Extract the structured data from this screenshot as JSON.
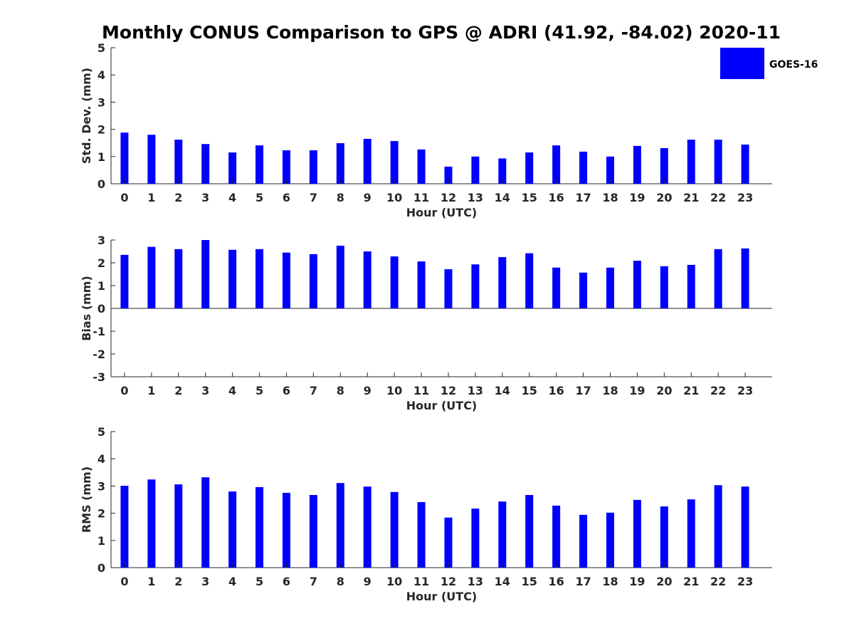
{
  "figure": {
    "title": "Monthly CONUS Comparison to GPS @ ADRI (41.92, -84.02) 2020-11",
    "bar_color": "#0000ff",
    "legend": {
      "label": "GOES-16",
      "placement": "top-right"
    }
  },
  "chart_data": [
    {
      "type": "bar",
      "id": "stddev",
      "series_name": "GOES-16",
      "xlabel": "Hour (UTC)",
      "ylabel": "Std. Dev. (mm)",
      "ylim": [
        0,
        5
      ],
      "yticks": [
        0,
        1,
        2,
        3,
        4,
        5
      ],
      "categories": [
        0,
        1,
        2,
        3,
        4,
        5,
        6,
        7,
        8,
        9,
        10,
        11,
        12,
        13,
        14,
        15,
        16,
        17,
        18,
        19,
        20,
        21,
        22,
        23
      ],
      "values": [
        1.88,
        1.8,
        1.62,
        1.46,
        1.15,
        1.41,
        1.23,
        1.23,
        1.49,
        1.65,
        1.57,
        1.26,
        0.63,
        1.0,
        0.93,
        1.15,
        1.41,
        1.18,
        1.0,
        1.39,
        1.31,
        1.62,
        1.62,
        1.44
      ]
    },
    {
      "type": "bar",
      "id": "bias",
      "series_name": "GOES-16",
      "xlabel": "Hour (UTC)",
      "ylabel": "Bias (mm)",
      "ylim": [
        -3,
        3
      ],
      "yticks": [
        -3,
        -2,
        -1,
        0,
        1,
        2,
        3
      ],
      "categories": [
        0,
        1,
        2,
        3,
        4,
        5,
        6,
        7,
        8,
        9,
        10,
        11,
        12,
        13,
        14,
        15,
        16,
        17,
        18,
        19,
        20,
        21,
        22,
        23
      ],
      "values": [
        2.35,
        2.7,
        2.6,
        3.0,
        2.57,
        2.6,
        2.45,
        2.38,
        2.75,
        2.5,
        2.28,
        2.06,
        1.72,
        1.93,
        2.25,
        2.42,
        1.79,
        1.57,
        1.79,
        2.09,
        1.85,
        1.91,
        2.6,
        2.63
      ]
    },
    {
      "type": "bar",
      "id": "rms",
      "series_name": "GOES-16",
      "xlabel": "Hour (UTC)",
      "ylabel": "RMS (mm)",
      "ylim": [
        0,
        5
      ],
      "yticks": [
        0,
        1,
        2,
        3,
        4,
        5
      ],
      "categories": [
        0,
        1,
        2,
        3,
        4,
        5,
        6,
        7,
        8,
        9,
        10,
        11,
        12,
        13,
        14,
        15,
        16,
        17,
        18,
        19,
        20,
        21,
        22,
        23
      ],
      "values": [
        3.01,
        3.24,
        3.06,
        3.32,
        2.8,
        2.96,
        2.75,
        2.67,
        3.11,
        2.98,
        2.78,
        2.41,
        1.84,
        2.17,
        2.43,
        2.67,
        2.28,
        1.94,
        2.02,
        2.49,
        2.25,
        2.51,
        3.03,
        2.98
      ]
    }
  ]
}
